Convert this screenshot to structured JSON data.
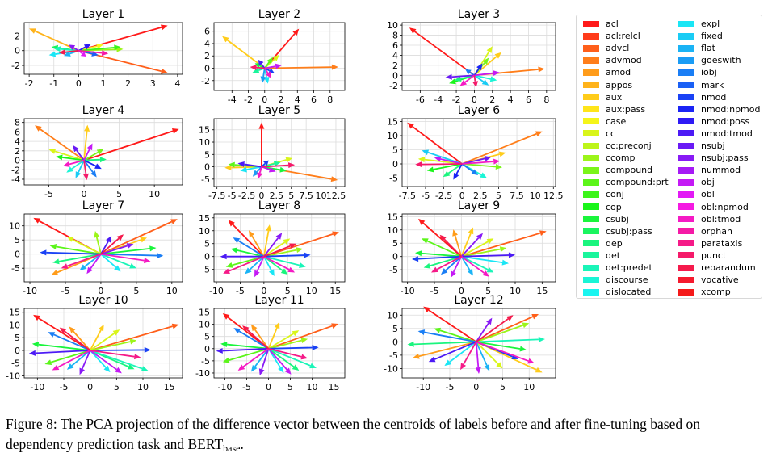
{
  "chart_data": [
    {
      "type": "scatter",
      "title": "Layer 1",
      "xlim": [
        -2.2,
        4.2
      ],
      "ylim": [
        -3.2,
        3.8
      ],
      "xticks": [
        -2,
        -1,
        0,
        1,
        2,
        3,
        4
      ],
      "yticks": [
        -2,
        0,
        2
      ],
      "grid": true,
      "vectors": [
        [
          3.6,
          3.4
        ],
        [
          3.6,
          -3.0
        ],
        [
          -2.0,
          3.0
        ],
        [
          1.0,
          0.8
        ],
        [
          1.8,
          0.2
        ],
        [
          1.7,
          0.5
        ],
        [
          -1.1,
          0.5
        ],
        [
          -1.0,
          0.3
        ],
        [
          -1.2,
          -0.6
        ],
        [
          -0.6,
          -0.7
        ],
        [
          0.8,
          -0.6
        ],
        [
          0.5,
          0.9
        ],
        [
          -0.4,
          0.8
        ],
        [
          0.3,
          -0.8
        ],
        [
          1.2,
          -0.4
        ],
        [
          -0.8,
          -0.3
        ]
      ]
    },
    {
      "type": "scatter",
      "title": "Layer 2",
      "xlim": [
        -6.2,
        9.8
      ],
      "ylim": [
        -3.6,
        7.4
      ],
      "xticks": [
        -4,
        -2,
        0,
        2,
        4,
        6,
        8
      ],
      "yticks": [
        -2,
        0,
        2,
        4,
        6
      ],
      "grid": true,
      "vectors": [
        [
          4.2,
          6.4
        ],
        [
          9.0,
          0.2
        ],
        [
          -5.2,
          5.2
        ],
        [
          1.8,
          2.2
        ],
        [
          1.0,
          1.8
        ],
        [
          -1.2,
          0.8
        ],
        [
          -1.5,
          -0.7
        ],
        [
          0.4,
          -2.5
        ],
        [
          -0.3,
          -2.4
        ],
        [
          1.2,
          -0.8
        ],
        [
          -0.8,
          1.4
        ],
        [
          2.1,
          0.5
        ],
        [
          0.8,
          -1.6
        ],
        [
          -1.8,
          0.2
        ]
      ]
    },
    {
      "type": "scatter",
      "title": "Layer 3",
      "xlim": [
        -8,
        9
      ],
      "ylim": [
        -3,
        10.5
      ],
      "xticks": [
        -6,
        -4,
        -2,
        0,
        2,
        4,
        6,
        8
      ],
      "yticks": [
        -2,
        0,
        2,
        4,
        6,
        8,
        10
      ],
      "grid": true,
      "vectors": [
        [
          -7.2,
          9.5
        ],
        [
          7.8,
          1.3
        ],
        [
          3.0,
          4.6
        ],
        [
          2.0,
          5.8
        ],
        [
          1.6,
          3.5
        ],
        [
          -2.8,
          -1.6
        ],
        [
          -2.2,
          -1.0
        ],
        [
          2.5,
          -1.0
        ],
        [
          1.6,
          -2.0
        ],
        [
          -1.0,
          1.2
        ],
        [
          0.9,
          2.4
        ],
        [
          -3.2,
          -0.4
        ],
        [
          2.8,
          0.6
        ],
        [
          -1.6,
          -2.1
        ],
        [
          0.2,
          -2.4
        ]
      ]
    },
    {
      "type": "scatter",
      "title": "Layer 4",
      "xlim": [
        -8.5,
        14
      ],
      "ylim": [
        -5.2,
        8.8
      ],
      "xticks": [
        -5,
        0,
        5,
        10
      ],
      "yticks": [
        -4,
        -2,
        0,
        2,
        4,
        6,
        8
      ],
      "grid": true,
      "vectors": [
        [
          13.5,
          6.6
        ],
        [
          -7.0,
          7.4
        ],
        [
          0.5,
          7.5
        ],
        [
          -5.0,
          2.3
        ],
        [
          2.8,
          2.4
        ],
        [
          -4.0,
          0.8
        ],
        [
          3.2,
          0.2
        ],
        [
          -2.5,
          -2.6
        ],
        [
          -1.2,
          -3.8
        ],
        [
          1.8,
          -3.6
        ],
        [
          2.5,
          -1.8
        ],
        [
          -1.6,
          3.2
        ],
        [
          1.2,
          3.6
        ],
        [
          -3.0,
          -1.2
        ],
        [
          0.4,
          -4.2
        ]
      ]
    },
    {
      "type": "scatter",
      "title": "Layer 5",
      "xlim": [
        -8,
        14
      ],
      "ylim": [
        -8,
        19.5
      ],
      "xticks": [
        -7.5,
        -5.0,
        -2.5,
        0.0,
        2.5,
        5.0,
        7.5,
        10.0,
        12.5
      ],
      "yticks": [
        -5,
        0,
        5,
        10,
        15
      ],
      "grid": true,
      "vectors": [
        [
          0.0,
          18.0
        ],
        [
          12.8,
          -5.4
        ],
        [
          -6.2,
          -0.4
        ],
        [
          5.2,
          3.5
        ],
        [
          -5.6,
          1.0
        ],
        [
          4.2,
          -1.6
        ],
        [
          3.2,
          1.8
        ],
        [
          -3.6,
          -1.6
        ],
        [
          -1.5,
          -4.0
        ],
        [
          1.2,
          2.6
        ],
        [
          -4.0,
          1.4
        ],
        [
          2.4,
          -2.0
        ],
        [
          -0.6,
          -5.0
        ],
        [
          5.6,
          0.8
        ]
      ]
    },
    {
      "type": "scatter",
      "title": "Layer 6",
      "xlim": [
        -8.2,
        12.8
      ],
      "ylim": [
        -8,
        16
      ],
      "xticks": [
        -7.5,
        -5.0,
        -2.5,
        0.0,
        2.5,
        5.0,
        7.5,
        10.0,
        12.5
      ],
      "yticks": [
        -5,
        0,
        5,
        10,
        15
      ],
      "grid": true,
      "vectors": [
        [
          -7.5,
          14.6
        ],
        [
          11.0,
          11.5
        ],
        [
          6.0,
          4.0
        ],
        [
          -6.0,
          1.8
        ],
        [
          5.5,
          -1.2
        ],
        [
          -4.8,
          -2.4
        ],
        [
          -2.6,
          -4.6
        ],
        [
          3.4,
          -5.0
        ],
        [
          -5.5,
          4.8
        ],
        [
          2.2,
          -4.0
        ],
        [
          -1.2,
          -5.6
        ],
        [
          4.0,
          2.4
        ],
        [
          -3.8,
          2.2
        ],
        [
          5.2,
          1.0
        ],
        [
          -6.4,
          -0.2
        ]
      ]
    },
    {
      "type": "scatter",
      "title": "Layer 7",
      "xlim": [
        -10.8,
        11.5
      ],
      "ylim": [
        -9.8,
        14.2
      ],
      "xticks": [
        -10,
        -5,
        0,
        5,
        10
      ],
      "yticks": [
        -5,
        0,
        5,
        10
      ],
      "grid": true,
      "vectors": [
        [
          -9.5,
          12.8
        ],
        [
          10.8,
          12.4
        ],
        [
          -7.0,
          -7.4
        ],
        [
          6.5,
          5.8
        ],
        [
          -4.8,
          6.2
        ],
        [
          -0.8,
          8.2
        ],
        [
          -7.2,
          3.0
        ],
        [
          7.8,
          2.2
        ],
        [
          -6.8,
          -3.0
        ],
        [
          5.0,
          -5.0
        ],
        [
          2.8,
          -6.2
        ],
        [
          -3.0,
          -5.8
        ],
        [
          8.8,
          -0.6
        ],
        [
          -8.6,
          0.6
        ],
        [
          1.5,
          6.5
        ],
        [
          4.6,
          3.6
        ],
        [
          -2.0,
          -7.0
        ],
        [
          7.0,
          -2.6
        ],
        [
          -5.6,
          -5.0
        ],
        [
          3.2,
          7.0
        ]
      ]
    },
    {
      "type": "scatter",
      "title": "Layer 8",
      "xlim": [
        -10.5,
        17
      ],
      "ylim": [
        -9.8,
        16.5
      ],
      "xticks": [
        -10,
        -5,
        0,
        5,
        10,
        15
      ],
      "yticks": [
        -5,
        0,
        5,
        10,
        15
      ],
      "grid": true,
      "vectors": [
        [
          -7.5,
          14.2
        ],
        [
          15.8,
          9.5
        ],
        [
          -3.2,
          10.2
        ],
        [
          1.2,
          12.4
        ],
        [
          5.5,
          7.0
        ],
        [
          8.2,
          3.0
        ],
        [
          -8.0,
          -4.0
        ],
        [
          -7.0,
          3.0
        ],
        [
          5.0,
          -7.0
        ],
        [
          8.8,
          -4.0
        ],
        [
          2.2,
          -7.6
        ],
        [
          -4.0,
          -6.8
        ],
        [
          -6.5,
          7.4
        ],
        [
          9.8,
          0.6
        ],
        [
          -9.2,
          0.0
        ],
        [
          3.8,
          9.2
        ],
        [
          -2.0,
          -8.0
        ],
        [
          6.5,
          -6.2
        ],
        [
          -8.6,
          -6.6
        ],
        [
          6.8,
          5.0
        ]
      ]
    },
    {
      "type": "scatter",
      "title": "Layer 9",
      "xlim": [
        -11,
        17.5
      ],
      "ylim": [
        -9.5,
        16
      ],
      "xticks": [
        -10,
        -5,
        0,
        5,
        10,
        15
      ],
      "yticks": [
        -5,
        0,
        5,
        10,
        15
      ],
      "grid": true,
      "vectors": [
        [
          -8.0,
          14.2
        ],
        [
          15.8,
          9.5
        ],
        [
          -1.5,
          10.2
        ],
        [
          2.2,
          11.0
        ],
        [
          6.0,
          6.8
        ],
        [
          8.4,
          3.2
        ],
        [
          -7.4,
          6.8
        ],
        [
          -8.6,
          1.4
        ],
        [
          -7.0,
          -4.2
        ],
        [
          6.0,
          -6.0
        ],
        [
          8.8,
          -2.6
        ],
        [
          2.2,
          -7.2
        ],
        [
          -3.8,
          -6.8
        ],
        [
          -9.2,
          -1.0
        ],
        [
          10.0,
          0.6
        ],
        [
          4.0,
          8.8
        ],
        [
          -2.0,
          -8.0
        ],
        [
          5.2,
          -7.6
        ],
        [
          -5.6,
          -6.0
        ],
        [
          -4.0,
          8.2
        ]
      ]
    },
    {
      "type": "scatter",
      "title": "Layer 10",
      "xlim": [
        -12.5,
        17.5
      ],
      "ylim": [
        -10.8,
        16.5
      ],
      "xticks": [
        -10,
        -5,
        0,
        5,
        10,
        15
      ],
      "yticks": [
        -10,
        -5,
        0,
        5,
        10,
        15
      ],
      "grid": true,
      "vectors": [
        [
          -10.8,
          14.0
        ],
        [
          16.8,
          10.2
        ],
        [
          -4.0,
          9.4
        ],
        [
          2.6,
          10.2
        ],
        [
          5.6,
          8.2
        ],
        [
          8.8,
          4.0
        ],
        [
          -8.6,
          -5.4
        ],
        [
          -11.0,
          2.6
        ],
        [
          8.4,
          -7.4
        ],
        [
          11.0,
          -8.0
        ],
        [
          3.8,
          -8.6
        ],
        [
          -4.4,
          -7.6
        ],
        [
          -8.0,
          7.2
        ],
        [
          11.5,
          0.2
        ],
        [
          -11.6,
          -1.2
        ],
        [
          -2.0,
          -9.6
        ],
        [
          6.0,
          -9.0
        ],
        [
          -7.2,
          -7.8
        ],
        [
          9.6,
          -2.8
        ],
        [
          -5.8,
          9.0
        ]
      ]
    },
    {
      "type": "scatter",
      "title": "Layer 11",
      "xlim": [
        -12.5,
        17.5
      ],
      "ylim": [
        -12,
        16.5
      ],
      "xticks": [
        -10,
        -5,
        0,
        5,
        10,
        15
      ],
      "yticks": [
        -10,
        -5,
        0,
        5,
        10,
        15
      ],
      "grid": true,
      "vectors": [
        [
          -10.5,
          14.5
        ],
        [
          16.0,
          10.2
        ],
        [
          -4.0,
          10.0
        ],
        [
          2.5,
          11.0
        ],
        [
          7.0,
          7.5
        ],
        [
          9.0,
          4.0
        ],
        [
          -10.5,
          -5.5
        ],
        [
          -11.0,
          2.0
        ],
        [
          7.0,
          -9.0
        ],
        [
          11.0,
          -8.0
        ],
        [
          3.5,
          -10.0
        ],
        [
          -4.0,
          -9.5
        ],
        [
          -8.0,
          8.5
        ],
        [
          11.5,
          0.5
        ],
        [
          -12.0,
          -1.0
        ],
        [
          -2.0,
          -11.0
        ],
        [
          5.2,
          -10.6
        ],
        [
          -7.0,
          -9.0
        ],
        [
          9.0,
          -4.0
        ],
        [
          -6.0,
          9.5
        ]
      ]
    },
    {
      "type": "scatter",
      "title": "Layer 12",
      "xlim": [
        -14,
        15
      ],
      "ylim": [
        -13.5,
        12.5
      ],
      "xticks": [
        -10,
        -5,
        0,
        5,
        10
      ],
      "yticks": [
        -10,
        -5,
        0,
        5,
        10
      ],
      "grid": true,
      "vectors": [
        [
          -10.0,
          13.2
        ],
        [
          11.8,
          10.4
        ],
        [
          -12.0,
          -6.0
        ],
        [
          12.5,
          -11.5
        ],
        [
          5.0,
          -10.0
        ],
        [
          10.0,
          7.0
        ],
        [
          -8.0,
          5.0
        ],
        [
          9.5,
          -3.0
        ],
        [
          -13.0,
          -1.0
        ],
        [
          13.0,
          1.0
        ],
        [
          -6.0,
          -9.0
        ],
        [
          2.5,
          -11.0
        ],
        [
          -11.0,
          4.0
        ],
        [
          8.0,
          -6.5
        ],
        [
          -9.0,
          -7.5
        ],
        [
          3.0,
          9.0
        ],
        [
          0.5,
          -12.0
        ],
        [
          11.0,
          -8.0
        ],
        [
          -3.0,
          -10.5
        ],
        [
          7.0,
          10.0
        ]
      ]
    }
  ],
  "legend": [
    {
      "label": "acl",
      "color": "#ff1a1a"
    },
    {
      "label": "acl:relcl",
      "color": "#ff3b1a"
    },
    {
      "label": "advcl",
      "color": "#ff5f1a"
    },
    {
      "label": "advmod",
      "color": "#ff7e1a"
    },
    {
      "label": "amod",
      "color": "#ff9c1a"
    },
    {
      "label": "appos",
      "color": "#ffb31a"
    },
    {
      "label": "aux",
      "color": "#ffcc1a"
    },
    {
      "label": "aux:pass",
      "color": "#ffe51a"
    },
    {
      "label": "case",
      "color": "#f5f51a"
    },
    {
      "label": "cc",
      "color": "#d9f51a"
    },
    {
      "label": "cc:preconj",
      "color": "#bdf51a"
    },
    {
      "label": "ccomp",
      "color": "#9cf51a"
    },
    {
      "label": "compound",
      "color": "#7af51a"
    },
    {
      "label": "compound:prt",
      "color": "#5cf51a"
    },
    {
      "label": "conj",
      "color": "#3cf51a"
    },
    {
      "label": "cop",
      "color": "#1af51a"
    },
    {
      "label": "csubj",
      "color": "#1af53c"
    },
    {
      "label": "csubj:pass",
      "color": "#1af55f"
    },
    {
      "label": "dep",
      "color": "#1af57e"
    },
    {
      "label": "det",
      "color": "#1af59c"
    },
    {
      "label": "det:predet",
      "color": "#1af5b8"
    },
    {
      "label": "discourse",
      "color": "#1af5d6"
    },
    {
      "label": "dislocated",
      "color": "#1af5f0"
    },
    {
      "label": "expl",
      "color": "#1ae6f5"
    },
    {
      "label": "fixed",
      "color": "#1accf5"
    },
    {
      "label": "flat",
      "color": "#1ab3f5"
    },
    {
      "label": "goeswith",
      "color": "#1a9cf5"
    },
    {
      "label": "iobj",
      "color": "#1a7ef5"
    },
    {
      "label": "mark",
      "color": "#1a60f5"
    },
    {
      "label": "nmod",
      "color": "#1a42f5"
    },
    {
      "label": "nmod:npmod",
      "color": "#1a24f5"
    },
    {
      "label": "nmod:poss",
      "color": "#2e1af5"
    },
    {
      "label": "nmod:tmod",
      "color": "#4c1af5"
    },
    {
      "label": "nsubj",
      "color": "#6a1af5"
    },
    {
      "label": "nsubj:pass",
      "color": "#881af5"
    },
    {
      "label": "nummod",
      "color": "#a61af5"
    },
    {
      "label": "obj",
      "color": "#c41af5"
    },
    {
      "label": "obl",
      "color": "#e21af5"
    },
    {
      "label": "obl:npmod",
      "color": "#f51ae2"
    },
    {
      "label": "obl:tmod",
      "color": "#f51ac4"
    },
    {
      "label": "orphan",
      "color": "#f51aa6"
    },
    {
      "label": "parataxis",
      "color": "#f51a88"
    },
    {
      "label": "punct",
      "color": "#f51a6a"
    },
    {
      "label": "reparandum",
      "color": "#f51a4c"
    },
    {
      "label": "vocative",
      "color": "#f51a2e"
    },
    {
      "label": "xcomp",
      "color": "#f51a1a"
    }
  ],
  "caption": {
    "text": "Figure 8: The PCA projection of the difference vector between the centroids of labels before and after fine-tuning based on dependency prediction task and BERT",
    "sub": "base",
    "end": "."
  }
}
